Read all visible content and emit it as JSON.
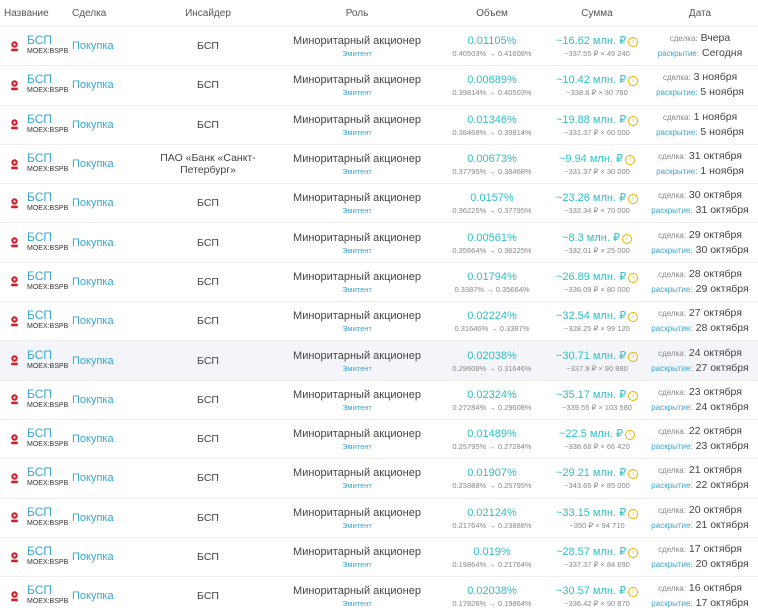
{
  "header": {
    "name": "Название",
    "deal": "Сделка",
    "insider": "Инсайдер",
    "role": "Роль",
    "volume": "Объем",
    "sum": "Сумма",
    "date": "Дата"
  },
  "rows": [
    {
      "name": "БСП",
      "code": "MOEX:BSPB",
      "deal": "Покупка",
      "insider": "БСП",
      "role": "Миноритарный акционер",
      "role_sub": "Эмитент",
      "volume": "0.01105%",
      "volume_sub": "0.40503% → 0.41608%",
      "sum": "~16.62 млн. ₽",
      "sum_sub": "~337.55 ₽ × 49 240",
      "deal_label": "сделка:",
      "deal_date": "Вчера",
      "disc_label": "раскрытие:",
      "disc_date": "Сегодня"
    },
    {
      "name": "БСП",
      "code": "MOEX:BSPB",
      "deal": "Покупка",
      "insider": "БСП",
      "role": "Миноритарный акционер",
      "role_sub": "Эмитент",
      "volume": "0.00689%",
      "volume_sub": "0.39814% → 0.40503%",
      "sum": "~10.42 млн. ₽",
      "sum_sub": "~338.6 ₽ × 30 760",
      "deal_label": "сделка:",
      "deal_date": "3 ноября",
      "disc_label": "раскрытие:",
      "disc_date": "5 ноября"
    },
    {
      "name": "БСП",
      "code": "MOEX:BSPB",
      "deal": "Покупка",
      "insider": "БСП",
      "role": "Миноритарный акционер",
      "role_sub": "Эмитент",
      "volume": "0.01346%",
      "volume_sub": "0.38468% → 0.39814%",
      "sum": "~19.88 млн. ₽",
      "sum_sub": "~331.37 ₽ × 60 000",
      "deal_label": "сделка:",
      "deal_date": "1 ноября",
      "disc_label": "раскрытие:",
      "disc_date": "5 ноября"
    },
    {
      "name": "БСП",
      "code": "MOEX:BSPB",
      "deal": "Покупка",
      "insider": "ПАО «Банк «Санкт-Петербург»",
      "role": "Миноритарный акционер",
      "role_sub": "Эмитент",
      "volume": "0.00673%",
      "volume_sub": "0.37795% → 0.38468%",
      "sum": "~9.94 млн. ₽",
      "sum_sub": "~331.37 ₽ × 30 000",
      "deal_label": "сделка:",
      "deal_date": "31 октября",
      "disc_label": "раскрытие:",
      "disc_date": "1 ноября"
    },
    {
      "name": "БСП",
      "code": "MOEX:BSPB",
      "deal": "Покупка",
      "insider": "БСП",
      "role": "Миноритарный акционер",
      "role_sub": "Эмитент",
      "volume": "0.0157%",
      "volume_sub": "0.36225% → 0.37795%",
      "sum": "~23.26 млн. ₽",
      "sum_sub": "~332.34 ₽ × 70 000",
      "deal_label": "сделка:",
      "deal_date": "30 октября",
      "disc_label": "раскрытие:",
      "disc_date": "31 октября"
    },
    {
      "name": "БСП",
      "code": "MOEX:BSPB",
      "deal": "Покупка",
      "insider": "БСП",
      "role": "Миноритарный акционер",
      "role_sub": "Эмитент",
      "volume": "0.00561%",
      "volume_sub": "0.35664% → 0.36225%",
      "sum": "~8.3 млн. ₽",
      "sum_sub": "~332.01 ₽ × 25 000",
      "deal_label": "сделка:",
      "deal_date": "29 октября",
      "disc_label": "раскрытие:",
      "disc_date": "30 октября"
    },
    {
      "name": "БСП",
      "code": "MOEX:BSPB",
      "deal": "Покупка",
      "insider": "БСП",
      "role": "Миноритарный акционер",
      "role_sub": "Эмитент",
      "volume": "0.01794%",
      "volume_sub": "0.3387% → 0.35664%",
      "sum": "~26.89 млн. ₽",
      "sum_sub": "~336.09 ₽ × 80 000",
      "deal_label": "сделка:",
      "deal_date": "28 октября",
      "disc_label": "раскрытие:",
      "disc_date": "29 октября"
    },
    {
      "name": "БСП",
      "code": "MOEX:BSPB",
      "deal": "Покупка",
      "insider": "БСП",
      "role": "Миноритарный акционер",
      "role_sub": "Эмитент",
      "volume": "0.02224%",
      "volume_sub": "0.31646% → 0.3387%",
      "sum": "~32.54 млн. ₽",
      "sum_sub": "~328.25 ₽ × 99 120",
      "deal_label": "сделка:",
      "deal_date": "27 октября",
      "disc_label": "раскрытие:",
      "disc_date": "28 октября"
    },
    {
      "name": "БСП",
      "code": "MOEX:BSPB",
      "deal": "Покупка",
      "insider": "БСП",
      "role": "Миноритарный акционер",
      "role_sub": "Эмитент",
      "volume": "0.02038%",
      "volume_sub": "0.29608% → 0.31646%",
      "sum": "~30.71 млн. ₽",
      "sum_sub": "~337.9 ₽ × 90 880",
      "deal_label": "сделка:",
      "deal_date": "24 октября",
      "disc_label": "раскрытие:",
      "disc_date": "27 октября"
    },
    {
      "name": "БСП",
      "code": "MOEX:BSPB",
      "deal": "Покупка",
      "insider": "БСП",
      "role": "Миноритарный акционер",
      "role_sub": "Эмитент",
      "volume": "0.02324%",
      "volume_sub": "0.27284% → 0.29608%",
      "sum": "~35.17 млн. ₽",
      "sum_sub": "~339.55 ₽ × 103 580",
      "deal_label": "сделка:",
      "deal_date": "23 октября",
      "disc_label": "раскрытие:",
      "disc_date": "24 октября"
    },
    {
      "name": "БСП",
      "code": "MOEX:BSPB",
      "deal": "Покупка",
      "insider": "БСП",
      "role": "Миноритарный акционер",
      "role_sub": "Эмитент",
      "volume": "0.01489%",
      "volume_sub": "0.25795% → 0.27284%",
      "sum": "~22.5 млн. ₽",
      "sum_sub": "~338.68 ₽ × 66 420",
      "deal_label": "сделка:",
      "deal_date": "22 октября",
      "disc_label": "раскрытие:",
      "disc_date": "23 октября"
    },
    {
      "name": "БСП",
      "code": "MOEX:BSPB",
      "deal": "Покупка",
      "insider": "БСП",
      "role": "Миноритарный акционер",
      "role_sub": "Эмитент",
      "volume": "0.01907%",
      "volume_sub": "0.23888% → 0.25795%",
      "sum": "~29.21 млн. ₽",
      "sum_sub": "~343.65 ₽ × 85 000",
      "deal_label": "сделка:",
      "deal_date": "21 октября",
      "disc_label": "раскрытие:",
      "disc_date": "22 октября"
    },
    {
      "name": "БСП",
      "code": "MOEX:BSPB",
      "deal": "Покупка",
      "insider": "БСП",
      "role": "Миноритарный акционер",
      "role_sub": "Эмитент",
      "volume": "0.02124%",
      "volume_sub": "0.21764% → 0.23888%",
      "sum": "~33.15 млн. ₽",
      "sum_sub": "~350 ₽ × 94 710",
      "deal_label": "сделка:",
      "deal_date": "20 октября",
      "disc_label": "раскрытие:",
      "disc_date": "21 октября"
    },
    {
      "name": "БСП",
      "code": "MOEX:BSPB",
      "deal": "Покупка",
      "insider": "БСП",
      "role": "Миноритарный акционер",
      "role_sub": "Эмитент",
      "volume": "0.019%",
      "volume_sub": "0.19864% → 0.21764%",
      "sum": "~28.57 млн. ₽",
      "sum_sub": "~337.37 ₽ × 84 690",
      "deal_label": "сделка:",
      "deal_date": "17 октября",
      "disc_label": "раскрытие:",
      "disc_date": "20 октября"
    },
    {
      "name": "БСП",
      "code": "MOEX:BSPB",
      "deal": "Покупка",
      "insider": "БСП",
      "role": "Миноритарный акционер",
      "role_sub": "Эмитент",
      "volume": "0.02038%",
      "volume_sub": "0.17826% → 0.19864%",
      "sum": "~30.57 млн. ₽",
      "sum_sub": "~336.42 ₽ × 90 870",
      "deal_label": "сделка:",
      "deal_date": "16 октября",
      "disc_label": "раскрытие:",
      "disc_date": "17 октября"
    }
  ],
  "highlighted_row": 8,
  "colors": {
    "accent": "#3aa6d0",
    "value": "#2ec0c7",
    "logo": "#d0202e",
    "info": "#e8b400"
  },
  "icons": {
    "logo": "bsp-logo-icon",
    "info": "info-icon"
  }
}
